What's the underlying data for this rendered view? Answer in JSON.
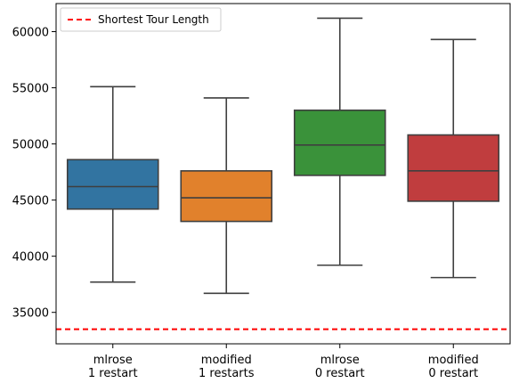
{
  "chart_data": {
    "type": "box",
    "title": "",
    "xlabel": "",
    "ylabel": "",
    "ylim": [
      32200,
      62500
    ],
    "yticks": [
      35000,
      40000,
      45000,
      50000,
      55000,
      60000
    ],
    "grid": false,
    "legend": {
      "position": "top-left",
      "entries": [
        "Shortest Tour Length"
      ]
    },
    "categories": [
      [
        "mlrose",
        "1 restart"
      ],
      [
        "modified",
        "1 restarts"
      ],
      [
        "mlrose",
        "0 restart"
      ],
      [
        "modified",
        "0 restart"
      ]
    ],
    "boxes": [
      {
        "min": 37700,
        "q1": 44200,
        "median": 46200,
        "q3": 48600,
        "max": 55100,
        "color": "#3274a1"
      },
      {
        "min": 36700,
        "q1": 43100,
        "median": 45200,
        "q3": 47600,
        "max": 54100,
        "color": "#e1812c"
      },
      {
        "min": 39200,
        "q1": 47200,
        "median": 49900,
        "q3": 53000,
        "max": 61200,
        "color": "#3a923a"
      },
      {
        "min": 38100,
        "q1": 44900,
        "median": 47600,
        "q3": 50800,
        "max": 59300,
        "color": "#c03d3e"
      }
    ],
    "reference_line": {
      "name": "Shortest Tour Length",
      "value": 33500,
      "color": "#ff0000",
      "style": "dashed"
    }
  }
}
